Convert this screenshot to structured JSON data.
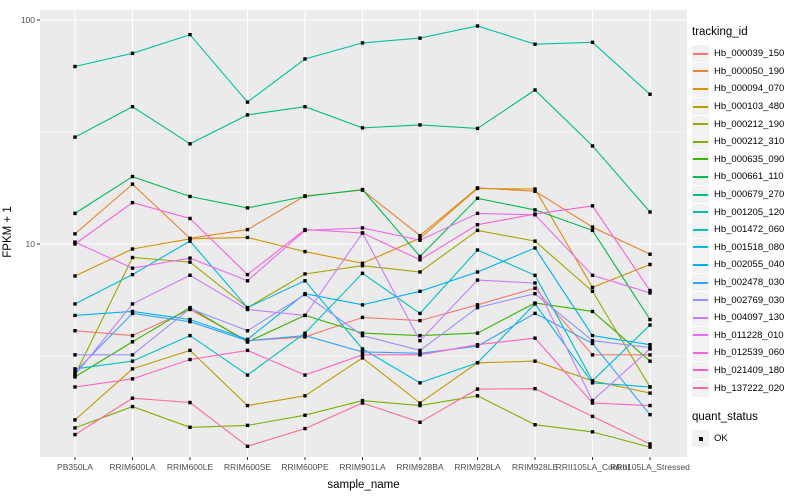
{
  "chart_data": {
    "type": "line",
    "title": "",
    "xlabel": "sample_name",
    "ylabel": "FPKM + 1",
    "y_scale": "log10",
    "ylim": [
      1,
      110
    ],
    "yticks": [
      100,
      10
    ],
    "y_minor_ticks": [
      31.62,
      3.162
    ],
    "grid": "white major/minor gridlines on grey panel",
    "legend_position": "right",
    "categories": [
      "PB350LA",
      "RRIM600LA",
      "RRIM600LE",
      "RRIM600SE",
      "RRIM600PE",
      "RRIM901LA",
      "RRIM928BA",
      "RRIM928LA",
      "RRIM928LE",
      "RRII105LA_Control",
      "RRII105LA_Stressed"
    ],
    "series": [
      {
        "name": "Hb_000039_150",
        "color": "#F8766D",
        "values": [
          4.1,
          3.9,
          5.1,
          3.7,
          3.85,
          4.7,
          4.55,
          5.35,
          6.35,
          3.2,
          3.2
        ]
      },
      {
        "name": "Hb_000050_190",
        "color": "#EA8331",
        "values": [
          11.1,
          18.5,
          10.6,
          11.6,
          16.4,
          17.4,
          10.9,
          17.8,
          17.2,
          11.9,
          9.0
        ]
      },
      {
        "name": "Hb_000094_070",
        "color": "#D89000",
        "values": [
          7.2,
          9.5,
          10.55,
          10.7,
          9.25,
          8.2,
          10.6,
          17.7,
          17.6,
          6.4,
          8.1
        ]
      },
      {
        "name": "Hb_000103_480",
        "color": "#C09B00",
        "values": [
          1.64,
          2.77,
          3.35,
          1.9,
          2.1,
          3.1,
          1.95,
          2.95,
          3.0,
          2.45,
          2.16
        ]
      },
      {
        "name": "Hb_000212_190",
        "color": "#A3A500",
        "values": [
          2.6,
          8.7,
          8.3,
          5.2,
          7.35,
          8.0,
          7.5,
          11.5,
          10.3,
          6.15,
          2.3
        ]
      },
      {
        "name": "Hb_000212_310",
        "color": "#7CAE00",
        "values": [
          1.51,
          1.88,
          1.52,
          1.55,
          1.72,
          2.0,
          1.9,
          2.1,
          1.56,
          1.45,
          1.24
        ]
      },
      {
        "name": "Hb_000635_090",
        "color": "#39B600",
        "values": [
          2.55,
          3.66,
          5.2,
          3.65,
          4.8,
          4.0,
          3.9,
          4.0,
          5.45,
          5.0,
          3.0
        ]
      },
      {
        "name": "Hb_000661_110",
        "color": "#00BB4E",
        "values": [
          13.7,
          20,
          16.3,
          14.5,
          16.3,
          17.5,
          8.8,
          16.0,
          14.2,
          11.5,
          4.6
        ]
      },
      {
        "name": "Hb_000679_270",
        "color": "#00BF7D",
        "values": [
          30,
          41,
          28,
          37.7,
          41,
          33,
          34,
          32.8,
          48.7,
          27.4,
          13.9
        ]
      },
      {
        "name": "Hb_001205_120",
        "color": "#00C1A3",
        "values": [
          62,
          71,
          86,
          43,
          67,
          79,
          83,
          94,
          78,
          79.5,
          46.6
        ]
      },
      {
        "name": "Hb_001472_060",
        "color": "#00BFC4",
        "values": [
          2.77,
          3.0,
          3.9,
          2.6,
          4.0,
          7.4,
          4.9,
          9.4,
          7.25,
          2.45,
          4.35
        ]
      },
      {
        "name": "Hb_001518_080",
        "color": "#00BAE0",
        "values": [
          5.4,
          7.3,
          10.3,
          5.2,
          6.85,
          3.4,
          2.4,
          2.95,
          5.4,
          2.4,
          2.3
        ]
      },
      {
        "name": "Hb_002055_040",
        "color": "#00B0F6",
        "values": [
          4.8,
          5.0,
          4.6,
          3.75,
          6.0,
          5.35,
          6.15,
          7.5,
          9.6,
          3.9,
          3.55
        ]
      },
      {
        "name": "Hb_002478_030",
        "color": "#35A2FF",
        "values": [
          2.68,
          4.9,
          4.5,
          3.7,
          3.9,
          3.3,
          3.25,
          3.5,
          4.9,
          3.6,
          1.73
        ]
      },
      {
        "name": "Hb_002769_030",
        "color": "#9590FF",
        "values": [
          3.2,
          3.2,
          5.15,
          4.1,
          5.95,
          3.9,
          3.35,
          5.2,
          6.0,
          3.7,
          3.45
        ]
      },
      {
        "name": "Hb_004097_130",
        "color": "#C77CFF",
        "values": [
          2.6,
          5.4,
          7.25,
          5.1,
          4.8,
          11.2,
          3.7,
          6.9,
          6.7,
          2.0,
          3.4
        ]
      },
      {
        "name": "Hb_011228_010",
        "color": "#E76BF3",
        "values": [
          10.2,
          7.8,
          8.65,
          6.85,
          11.5,
          11.8,
          10.4,
          13.7,
          13.5,
          7.25,
          6.05
        ]
      },
      {
        "name": "Hb_012539_060",
        "color": "#FA62DB",
        "values": [
          10.0,
          15.3,
          13.0,
          7.3,
          11.6,
          11.2,
          8.5,
          12.2,
          13.6,
          14.8,
          6.2
        ]
      },
      {
        "name": "Hb_021409_180",
        "color": "#FF61C3",
        "values": [
          2.3,
          2.5,
          3.05,
          3.35,
          2.6,
          3.2,
          3.2,
          3.55,
          3.8,
          1.95,
          1.9
        ]
      },
      {
        "name": "Hb_137222_020",
        "color": "#FF6A98",
        "values": [
          1.41,
          2.05,
          1.96,
          1.25,
          1.5,
          1.95,
          1.6,
          2.25,
          2.26,
          1.7,
          1.28
        ]
      }
    ]
  },
  "legend": {
    "tracking_title": "tracking_id",
    "quant_title": "quant_status",
    "quant_items": [
      {
        "label": "OK",
        "marker": "black-square"
      }
    ]
  },
  "colors": {
    "panel_bg": "#EBEBEB",
    "grid": "#FFFFFF",
    "axis_text": "#4D4D4D",
    "tick_mark": "#333333",
    "marker": "#000000",
    "legend_key_bg": "#F2F2F2"
  }
}
